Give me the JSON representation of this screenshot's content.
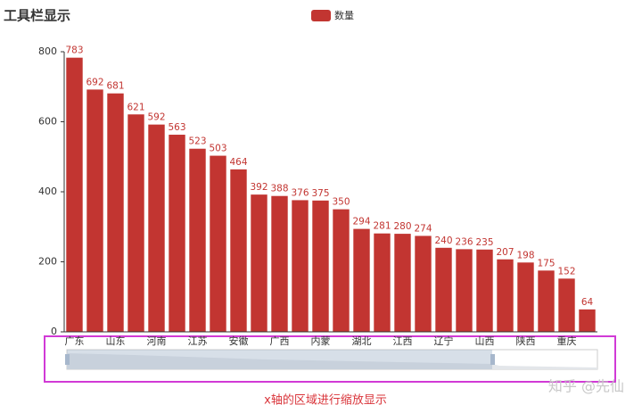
{
  "chart_data": {
    "type": "bar",
    "title": "工具栏显示",
    "legend": "数量",
    "color": "#c23531",
    "categories": [
      "广东",
      null,
      "山东",
      null,
      "河南",
      null,
      "江苏",
      null,
      "安徽",
      null,
      "广西",
      null,
      "内蒙",
      null,
      "湖北",
      null,
      "江西",
      null,
      "辽宁",
      null,
      "山西",
      null,
      "陕西",
      null,
      "重庆",
      null
    ],
    "values": [
      783,
      692,
      681,
      621,
      592,
      563,
      523,
      503,
      464,
      392,
      388,
      376,
      375,
      350,
      294,
      281,
      280,
      274,
      240,
      236,
      235,
      207,
      198,
      175,
      152,
      64
    ],
    "ylim": [
      0,
      800
    ],
    "yticks": [
      0,
      200,
      400,
      600,
      800
    ],
    "grid": false,
    "annotation": "x轴的区域进行缩放显示",
    "watermark": "知乎 @先仙"
  }
}
